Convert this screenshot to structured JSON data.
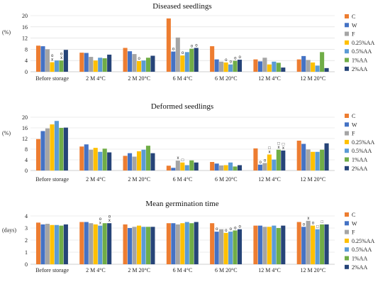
{
  "colors": [
    "#ED7D31",
    "#4472C4",
    "#A5A5A5",
    "#FFC000",
    "#5B9BD5",
    "#70AD47",
    "#264478"
  ],
  "chart_data": [
    {
      "type": "bar",
      "title": "Diseased seedlings",
      "ylabel": "(%)",
      "ylim": [
        0,
        20
      ],
      "yticks": [
        0,
        4,
        8,
        12,
        16,
        20
      ],
      "grid": true,
      "legend": "right",
      "categories": [
        "Before storage",
        "2 M 4°C",
        "2 M 20°C",
        "6 M 4°C",
        "6 M 20°C",
        "12 M 4°C",
        "12 M 20°C"
      ],
      "series": [
        {
          "name": "C",
          "values": [
            9.3,
            6.8,
            8.5,
            19.0,
            9.1,
            4.4,
            4.4
          ]
        },
        {
          "name": "W",
          "values": [
            9.1,
            6.7,
            7.3,
            7.2,
            4.4,
            3.7,
            5.6
          ]
        },
        {
          "name": "F",
          "values": [
            8.0,
            5.3,
            6.3,
            12.2,
            3.6,
            5.0,
            4.2
          ]
        },
        {
          "name": "0.25%AA",
          "values": [
            3.4,
            4.0,
            3.8,
            5.8,
            3.3,
            2.6,
            3.3
          ]
        },
        {
          "name": "0.5%AA",
          "values": [
            4.0,
            5.0,
            4.0,
            7.0,
            2.6,
            3.6,
            2.2
          ]
        },
        {
          "name": "1%AA",
          "values": [
            4.0,
            4.8,
            5.0,
            8.2,
            3.9,
            3.2,
            7.0
          ]
        },
        {
          "name": "2%AA",
          "values": [
            7.8,
            6.1,
            5.7,
            8.5,
            4.3,
            1.5,
            1.3
          ]
        }
      ],
      "annotations": [
        {
          "category": 0,
          "series": 3,
          "text": "x"
        },
        {
          "category": 0,
          "series": 3,
          "text": "o"
        },
        {
          "category": 0,
          "series": 5,
          "text": "x"
        },
        {
          "category": 0,
          "series": 5,
          "text": "o"
        },
        {
          "category": 2,
          "series": 3,
          "text": "o"
        },
        {
          "category": 3,
          "series": 1,
          "text": "o"
        },
        {
          "category": 3,
          "series": 3,
          "text": "o"
        },
        {
          "category": 3,
          "series": 5,
          "text": "o"
        },
        {
          "category": 3,
          "series": 6,
          "text": "o"
        },
        {
          "category": 4,
          "series": 3,
          "text": "o"
        },
        {
          "category": 4,
          "series": 4,
          "text": "o"
        },
        {
          "category": 4,
          "series": 5,
          "text": "o"
        },
        {
          "category": 4,
          "series": 6,
          "text": "o"
        }
      ]
    },
    {
      "type": "bar",
      "title": "Deformed seedlings",
      "ylabel": "(%)",
      "ylim": [
        0,
        20
      ],
      "yticks": [
        0,
        4,
        8,
        12,
        16,
        20
      ],
      "grid": true,
      "legend": "right",
      "categories": [
        "Before storage",
        "2 M 4°C",
        "2 M 20°C",
        "6 M 4°C",
        "6 M 20°C",
        "12 M 4°C",
        "12 M 20°C"
      ],
      "series": [
        {
          "name": "C",
          "values": [
            11.8,
            9.0,
            5.5,
            1.8,
            3.2,
            8.3,
            11.2
          ]
        },
        {
          "name": "W",
          "values": [
            14.8,
            9.8,
            6.5,
            1.0,
            2.6,
            2.2,
            10.0
          ]
        },
        {
          "name": "F",
          "values": [
            15.8,
            7.8,
            5.2,
            3.7,
            1.9,
            2.8,
            7.9
          ]
        },
        {
          "name": "0.25%AA",
          "values": [
            17.3,
            8.5,
            7.2,
            3.0,
            2.0,
            6.0,
            7.0
          ]
        },
        {
          "name": "0.5%AA",
          "values": [
            18.6,
            7.0,
            7.8,
            2.0,
            3.0,
            4.1,
            7.0
          ]
        },
        {
          "name": "1%AA",
          "values": [
            16.0,
            8.2,
            9.3,
            3.8,
            1.5,
            7.8,
            7.8
          ]
        },
        {
          "name": "2%AA",
          "values": [
            16.1,
            6.8,
            6.5,
            3.0,
            2.0,
            7.5,
            10.2
          ]
        }
      ],
      "annotations": [
        {
          "category": 3,
          "series": 2,
          "text": "x"
        },
        {
          "category": 3,
          "series": 3,
          "text": "□"
        },
        {
          "category": 5,
          "series": 1,
          "text": "o"
        },
        {
          "category": 5,
          "series": 2,
          "text": "o"
        },
        {
          "category": 5,
          "series": 3,
          "text": "x"
        },
        {
          "category": 5,
          "series": 3,
          "text": "□"
        },
        {
          "category": 5,
          "series": 5,
          "text": "x"
        },
        {
          "category": 5,
          "series": 5,
          "text": "□"
        },
        {
          "category": 5,
          "series": 6,
          "text": "x"
        },
        {
          "category": 5,
          "series": 6,
          "text": "□"
        }
      ]
    },
    {
      "type": "bar",
      "title": "Mean germination time",
      "ylabel": "(days)",
      "ylim": [
        0,
        4
      ],
      "yticks": [
        0,
        1,
        2,
        3,
        4
      ],
      "grid": true,
      "legend": "right",
      "categories": [
        "Before storage",
        "2 M 4°C",
        "2 M 20°C",
        "6 M 4°C",
        "6 M 20°C",
        "12 M 4°C",
        "12 M 20°C"
      ],
      "series": [
        {
          "name": "C",
          "values": [
            3.45,
            3.5,
            3.3,
            3.4,
            3.4,
            3.2,
            3.5
          ]
        },
        {
          "name": "W",
          "values": [
            3.3,
            3.5,
            3.0,
            3.4,
            2.7,
            3.2,
            3.1
          ]
        },
        {
          "name": "F",
          "values": [
            3.35,
            3.4,
            3.1,
            3.3,
            2.9,
            3.1,
            3.6
          ]
        },
        {
          "name": "0.25%AA",
          "values": [
            3.25,
            3.3,
            3.2,
            3.4,
            2.6,
            3.1,
            3.2
          ]
        },
        {
          "name": "0.5%AA",
          "values": [
            3.25,
            3.2,
            3.1,
            3.5,
            2.7,
            3.2,
            2.9
          ]
        },
        {
          "name": "1%AA",
          "values": [
            3.2,
            3.4,
            3.1,
            3.4,
            2.8,
            3.0,
            3.3
          ]
        },
        {
          "name": "2%AA",
          "values": [
            3.3,
            3.4,
            3.1,
            3.5,
            2.9,
            3.2,
            3.3
          ]
        }
      ],
      "annotations": [
        {
          "category": 1,
          "series": 4,
          "text": "x"
        },
        {
          "category": 1,
          "series": 4,
          "text": "o"
        },
        {
          "category": 1,
          "series": 6,
          "text": "x"
        },
        {
          "category": 1,
          "series": 6,
          "text": "o"
        },
        {
          "category": 4,
          "series": 1,
          "text": "o"
        },
        {
          "category": 4,
          "series": 3,
          "text": "o"
        },
        {
          "category": 4,
          "series": 4,
          "text": "o"
        },
        {
          "category": 4,
          "series": 5,
          "text": "o"
        },
        {
          "category": 4,
          "series": 6,
          "text": "o"
        },
        {
          "category": 6,
          "series": 1,
          "text": "o"
        },
        {
          "category": 6,
          "series": 2,
          "text": "x"
        },
        {
          "category": 6,
          "series": 3,
          "text": "o"
        },
        {
          "category": 6,
          "series": 4,
          "text": "□"
        },
        {
          "category": 6,
          "series": 5,
          "text": "□"
        }
      ]
    }
  ]
}
